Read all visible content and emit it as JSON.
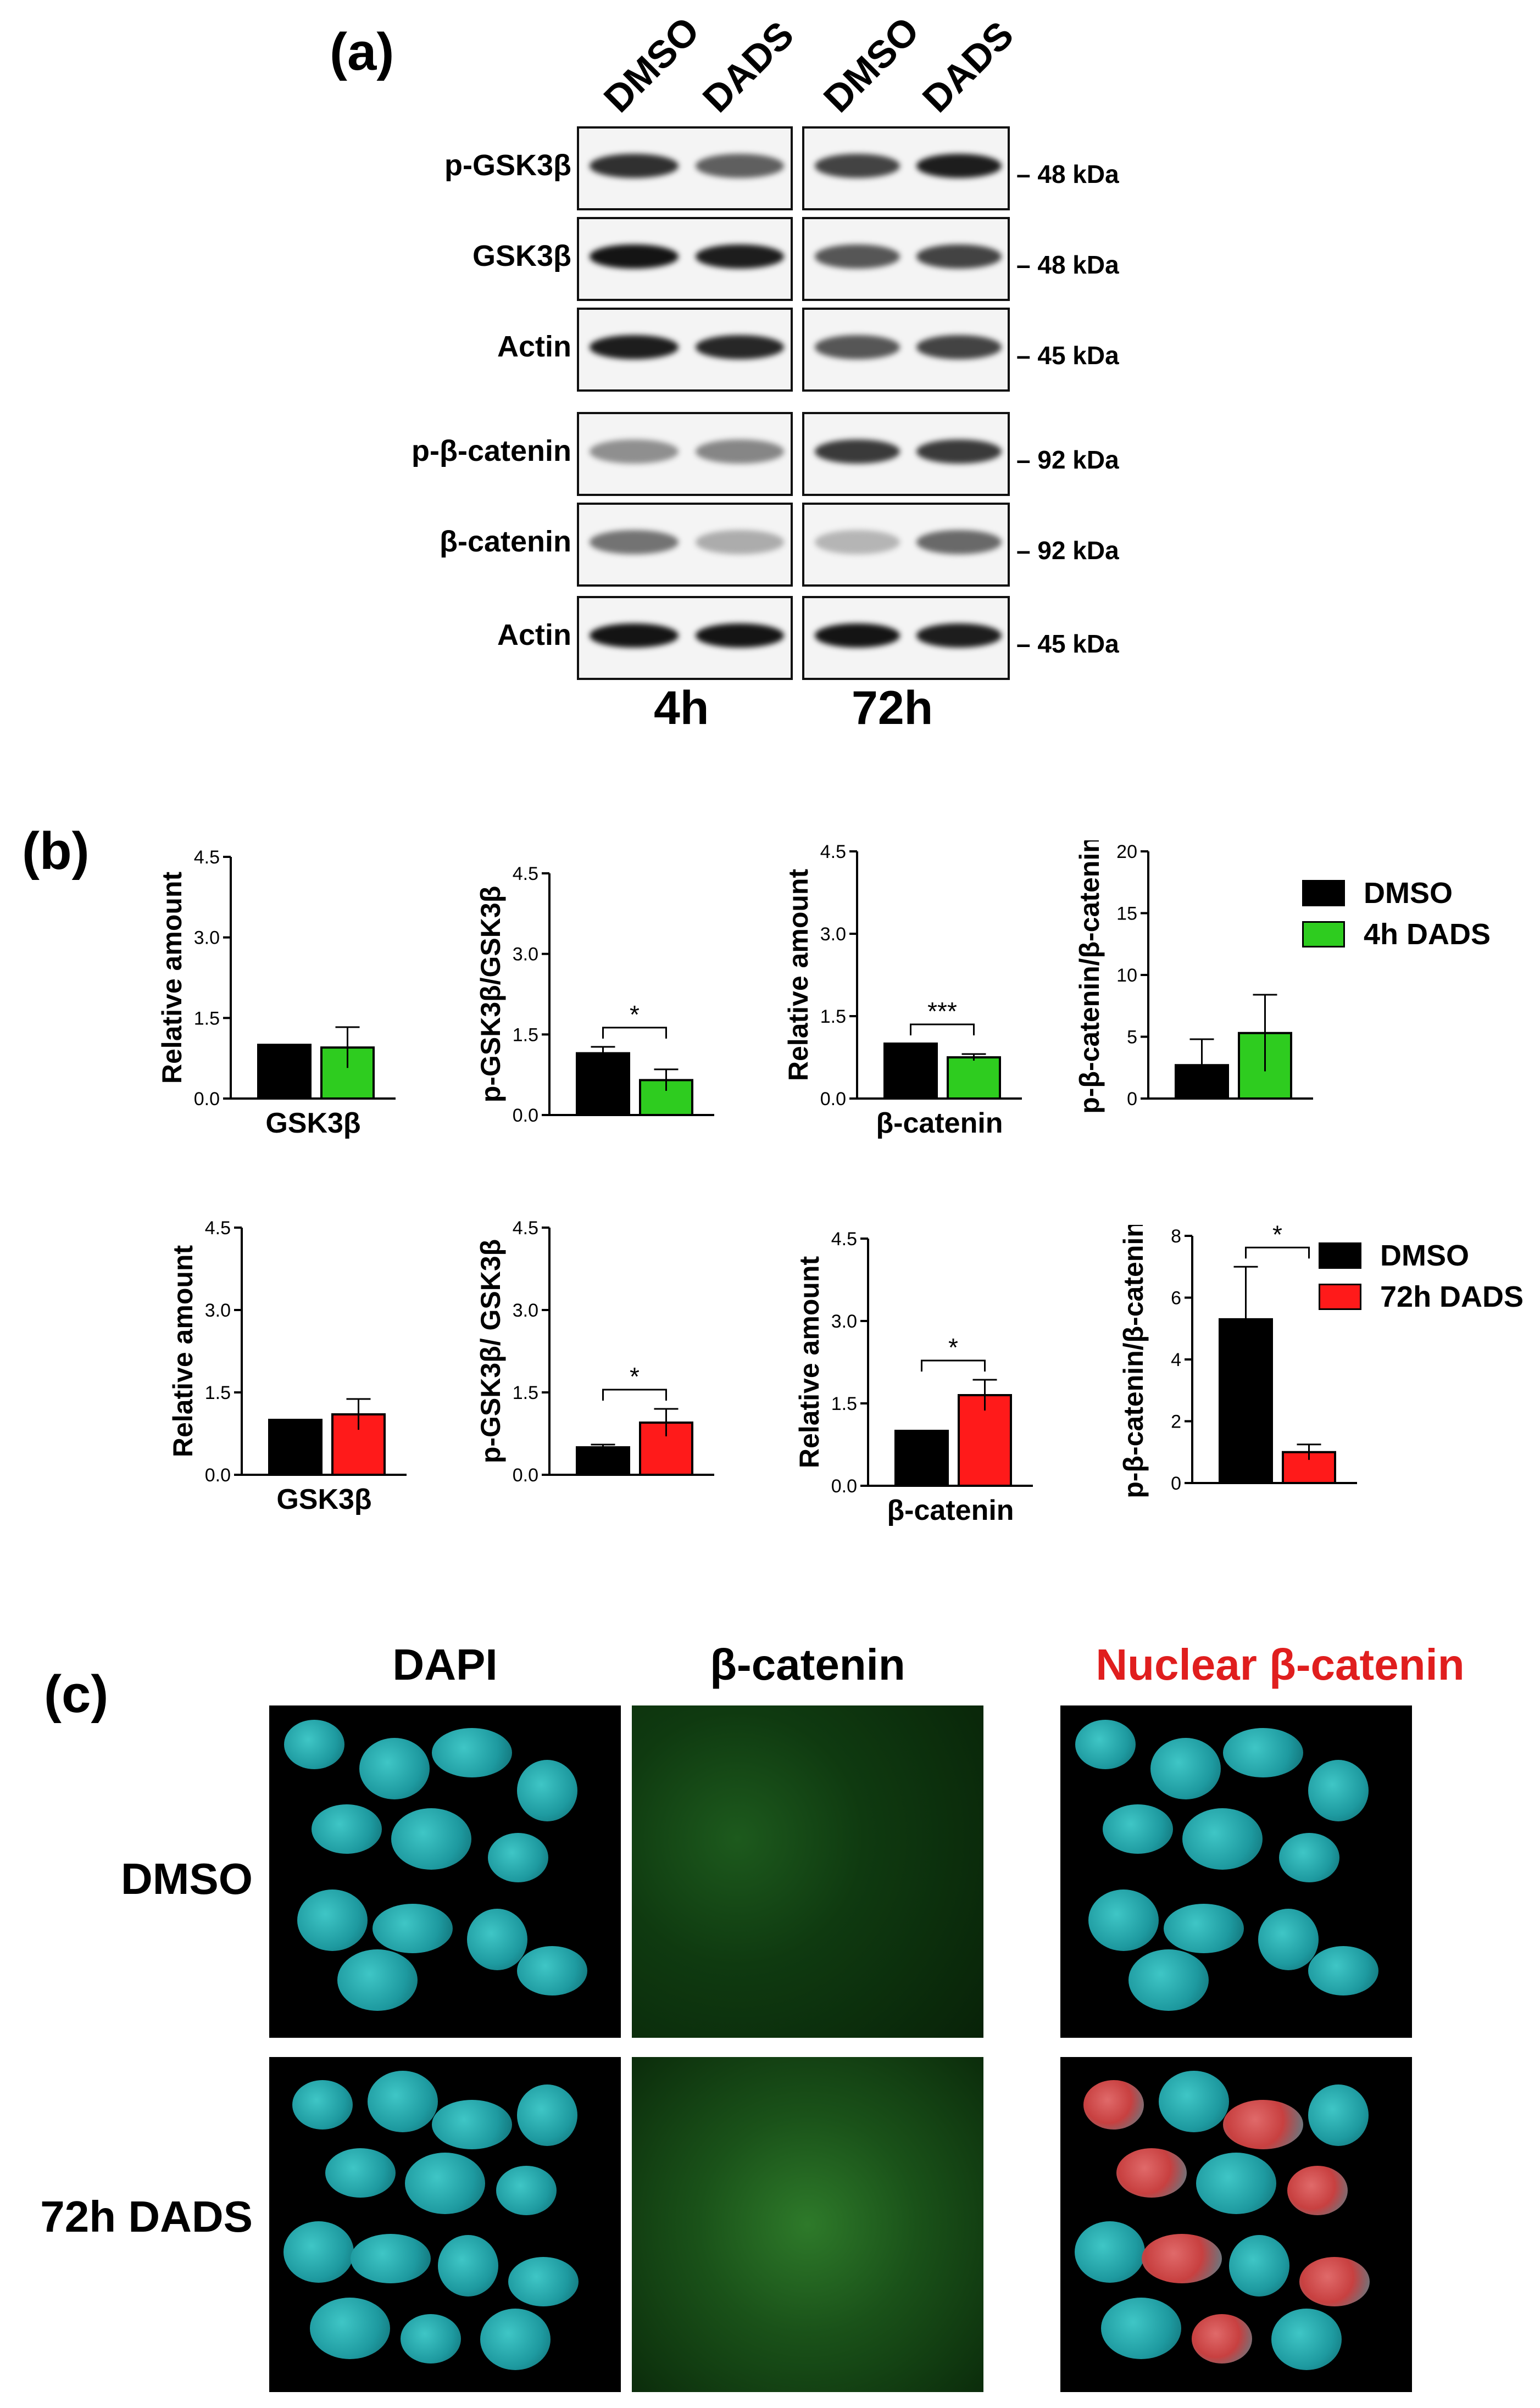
{
  "panel_a": {
    "letter": "(a)",
    "lanes": [
      "DMSO",
      "DADS",
      "DMSO",
      "DADS"
    ],
    "rows": [
      {
        "label": "p-GSK3β",
        "kda": "48 kDa"
      },
      {
        "label": "GSK3β",
        "kda": "48 kDa"
      },
      {
        "label": "Actin",
        "kda": "45 kDa"
      },
      {
        "label": "p-β-catenin",
        "kda": "92 kDa"
      },
      {
        "label": "β-catenin",
        "kda": "92 kDa"
      },
      {
        "label": "Actin",
        "kda": "45 kDa"
      }
    ],
    "time_4h": "4h",
    "time_72h": "72h"
  },
  "panel_b": {
    "letter": "(b)",
    "legend_top": {
      "label1": "DMSO",
      "label2": "4h DADS",
      "color1": "#000000",
      "color2": "#2ecc1f"
    },
    "legend_bottom": {
      "label1": "DMSO",
      "label2": "72h DADS",
      "color1": "#000000",
      "color2": "#ff1a1a"
    }
  },
  "chart_data": [
    {
      "type": "bar",
      "ylabel": "Relative amount",
      "xlabel": "GSK3β",
      "ylim": [
        0,
        4.5
      ],
      "ticks": [
        "0.0",
        "1.5",
        "3.0",
        "4.5"
      ],
      "series": [
        {
          "name": "DMSO",
          "values": [
            1.0
          ],
          "error": [
            0
          ]
        },
        {
          "name": "4h DADS",
          "values": [
            0.95
          ],
          "error": [
            0.38
          ]
        }
      ],
      "significance": ""
    },
    {
      "type": "bar",
      "ylabel": "p-GSK3β/GSK3β",
      "xlabel": "",
      "ylim": [
        0,
        4.5
      ],
      "ticks": [
        "0.0",
        "1.5",
        "3.0",
        "4.5"
      ],
      "series": [
        {
          "name": "DMSO",
          "values": [
            1.15
          ],
          "error": [
            0.12
          ]
        },
        {
          "name": "4h DADS",
          "values": [
            0.65
          ],
          "error": [
            0.2
          ]
        }
      ],
      "significance": "*"
    },
    {
      "type": "bar",
      "ylabel": "Relative amount",
      "xlabel": "β-catenin",
      "ylim": [
        0,
        4.5
      ],
      "ticks": [
        "0.0",
        "1.5",
        "3.0",
        "4.5"
      ],
      "series": [
        {
          "name": "DMSO",
          "values": [
            1.0
          ],
          "error": [
            0
          ]
        },
        {
          "name": "4h DADS",
          "values": [
            0.75
          ],
          "error": [
            0.06
          ]
        }
      ],
      "significance": "***"
    },
    {
      "type": "bar",
      "ylabel": "p-β-catenin/β-catenin",
      "xlabel": "",
      "ylim": [
        0,
        20
      ],
      "ticks": [
        "0",
        "5",
        "10",
        "15",
        "20"
      ],
      "series": [
        {
          "name": "DMSO",
          "values": [
            2.7
          ],
          "error": [
            2.1
          ]
        },
        {
          "name": "4h DADS",
          "values": [
            5.3
          ],
          "error": [
            3.1
          ]
        }
      ],
      "significance": ""
    },
    {
      "type": "bar",
      "ylabel": "Relative amount",
      "xlabel": "GSK3β",
      "ylim": [
        0,
        4.5
      ],
      "ticks": [
        "0.0",
        "1.5",
        "3.0",
        "4.5"
      ],
      "series": [
        {
          "name": "DMSO",
          "values": [
            1.0
          ],
          "error": [
            0
          ]
        },
        {
          "name": "72h DADS",
          "values": [
            1.1
          ],
          "error": [
            0.28
          ]
        }
      ],
      "significance": ""
    },
    {
      "type": "bar",
      "ylabel": "p-GSK3β/ GSK3β",
      "xlabel": "",
      "ylim": [
        0,
        4.5
      ],
      "ticks": [
        "0.0",
        "1.5",
        "3.0",
        "4.5"
      ],
      "series": [
        {
          "name": "DMSO",
          "values": [
            0.5
          ],
          "error": [
            0.05
          ]
        },
        {
          "name": "72h DADS",
          "values": [
            0.95
          ],
          "error": [
            0.25
          ]
        }
      ],
      "significance": "*"
    },
    {
      "type": "bar",
      "ylabel": "Relative amount",
      "xlabel": "β-catenin",
      "ylim": [
        0,
        4.5
      ],
      "ticks": [
        "0.0",
        "1.5",
        "3.0",
        "4.5"
      ],
      "series": [
        {
          "name": "DMSO",
          "values": [
            1.0
          ],
          "error": [
            0
          ]
        },
        {
          "name": "72h DADS",
          "values": [
            1.65
          ],
          "error": [
            0.28
          ]
        }
      ],
      "significance": "*"
    },
    {
      "type": "bar",
      "ylabel": "p-β-catenin/β-catenin",
      "xlabel": "",
      "ylim": [
        0,
        8
      ],
      "ticks": [
        "0",
        "2",
        "4",
        "6",
        "8"
      ],
      "series": [
        {
          "name": "DMSO",
          "values": [
            5.3
          ],
          "error": [
            1.7
          ]
        },
        {
          "name": "72h DADS",
          "values": [
            1.0
          ],
          "error": [
            0.25
          ]
        }
      ],
      "significance": "*"
    }
  ],
  "panel_c": {
    "letter": "(c)",
    "col_dapi": "DAPI",
    "col_bcat": "β-catenin",
    "col_nuclear": "Nuclear β-catenin",
    "row_dmso": "DMSO",
    "row_dads": "72h DADS"
  }
}
